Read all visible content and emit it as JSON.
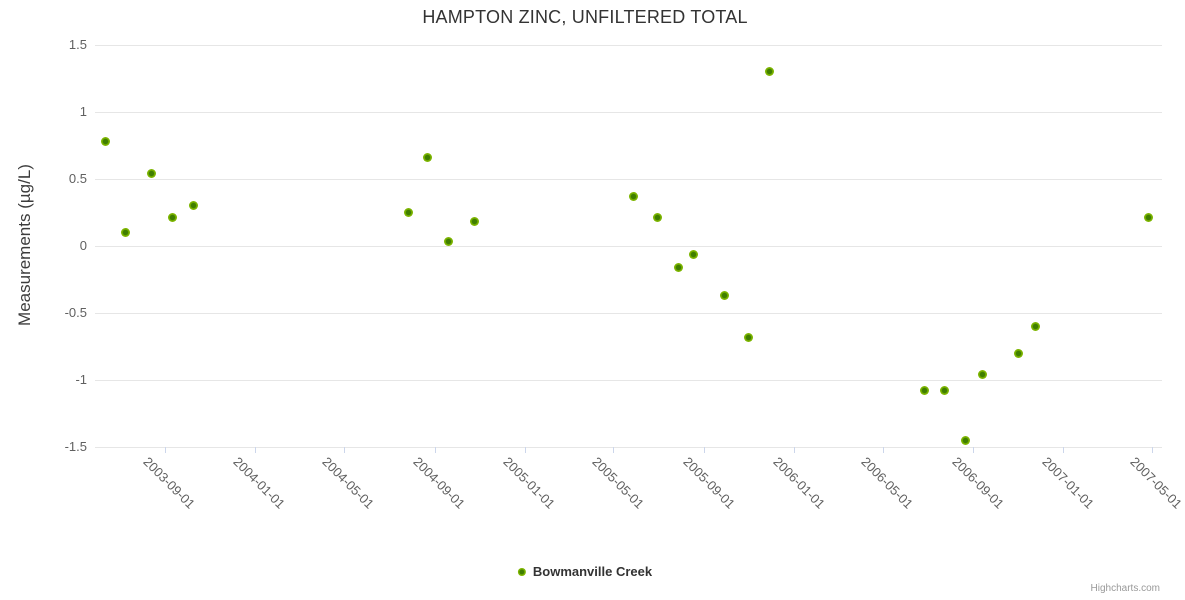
{
  "chart": {
    "credits_label": "Highcharts.com"
  },
  "colors": {
    "series_green": "#7db500",
    "marker_center_green": "#3f7e00",
    "grid_line": "#e6e6e6",
    "axis_line": "#ccd6eb",
    "title_text": "#333333",
    "axis_label_text": "#606060",
    "legend_text": "#333333",
    "credits_text": "#999999"
  },
  "chart_data": {
    "type": "scatter",
    "title": "HAMPTON ZINC, UNFILTERED TOTAL",
    "xlabel": "",
    "ylabel": "Measurements (µg/L)",
    "ylim": [
      -1.5,
      1.5
    ],
    "y_ticks": [
      1.5,
      1,
      0.5,
      0,
      -0.5,
      -1,
      -1.5
    ],
    "y_tick_labels": [
      "1.5",
      "1",
      "0.5",
      "0",
      "-0.5",
      "-1",
      "-1.5"
    ],
    "grid": "horizontal-only",
    "legend_position": "bottom-center",
    "x_axis_range": [
      "2003-05-29",
      "2007-05-14"
    ],
    "x_ticks": [
      "2003-09-01",
      "2004-01-01",
      "2004-05-01",
      "2004-09-01",
      "2005-01-01",
      "2005-05-01",
      "2005-09-01",
      "2006-01-01",
      "2006-05-01",
      "2006-09-01",
      "2007-01-01",
      "2007-05-01"
    ],
    "series": [
      {
        "name": "Bowmanville Creek",
        "color": "#7db500",
        "marker_center_color": "#3f7e00",
        "points": [
          {
            "date": "2003-06-12",
            "value": 0.78
          },
          {
            "date": "2003-07-10",
            "value": 0.1
          },
          {
            "date": "2003-08-13",
            "value": 0.54
          },
          {
            "date": "2003-09-11",
            "value": 0.21
          },
          {
            "date": "2003-10-09",
            "value": 0.3
          },
          {
            "date": "2004-07-27",
            "value": 0.25
          },
          {
            "date": "2004-08-21",
            "value": 0.66
          },
          {
            "date": "2004-09-19",
            "value": 0.03
          },
          {
            "date": "2004-10-24",
            "value": 0.18
          },
          {
            "date": "2005-05-28",
            "value": 0.37
          },
          {
            "date": "2005-06-29",
            "value": 0.21
          },
          {
            "date": "2005-07-28",
            "value": -0.16
          },
          {
            "date": "2005-08-17",
            "value": -0.06
          },
          {
            "date": "2005-09-28",
            "value": -0.37
          },
          {
            "date": "2005-10-30",
            "value": -0.68
          },
          {
            "date": "2005-11-28",
            "value": 1.3
          },
          {
            "date": "2006-06-26",
            "value": -1.08
          },
          {
            "date": "2006-07-23",
            "value": -1.08
          },
          {
            "date": "2006-08-21",
            "value": -1.45
          },
          {
            "date": "2006-09-13",
            "value": -0.96
          },
          {
            "date": "2006-10-31",
            "value": -0.8
          },
          {
            "date": "2006-11-24",
            "value": -0.6
          },
          {
            "date": "2007-04-26",
            "value": 0.21
          }
        ]
      }
    ]
  }
}
